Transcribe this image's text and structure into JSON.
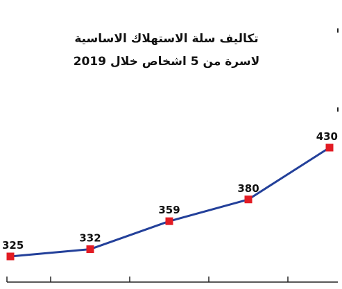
{
  "chart_data": {
    "type": "line",
    "title_line_1": "تكاليف سلة الاستهلاك الاساسية",
    "title_line_2": "لاسرة من 5 اشخاص خلال 2019",
    "values": [
      325,
      332,
      359,
      380,
      430
    ],
    "data_labels": [
      "325",
      "332",
      "359",
      "380",
      "430"
    ],
    "ylim": [
      300,
      450
    ],
    "grid": false,
    "colors": {
      "line": "#23409a",
      "marker": "#e21b23",
      "axis": "#222222",
      "text": "#111111"
    }
  }
}
